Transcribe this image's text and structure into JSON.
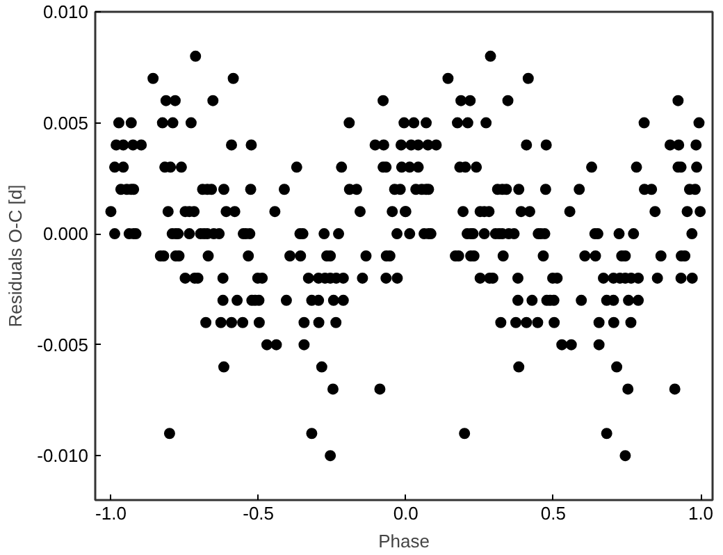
{
  "chart_data": {
    "type": "scatter",
    "xlabel": "Phase",
    "ylabel": "Residuals O-C [d]",
    "xlim": [
      -1.053,
      1.04
    ],
    "ylim": [
      -0.012,
      0.01
    ],
    "xticks": [
      {
        "value": -1.0,
        "label": "-1.0"
      },
      {
        "value": -0.5,
        "label": "-0.5"
      },
      {
        "value": 0.0,
        "label": "0.0"
      },
      {
        "value": 0.5,
        "label": "0.5"
      },
      {
        "value": 1.0,
        "label": "1.0"
      }
    ],
    "yticks": [
      {
        "value": -0.01,
        "label": "-0.010"
      },
      {
        "value": -0.005,
        "label": "-0.005"
      },
      {
        "value": 0.0,
        "label": "0.000"
      },
      {
        "value": 0.005,
        "label": "0.005"
      },
      {
        "value": 0.01,
        "label": "0.010"
      }
    ],
    "grid": false,
    "marker": "circle",
    "series": [
      {
        "color": "#000000",
        "x": [
          -0.713,
          -0.857,
          -0.585,
          -0.813,
          -0.782,
          -0.654,
          -0.077,
          -0.973,
          -0.931,
          -0.825,
          -0.79,
          -0.728,
          -0.192,
          -0.006,
          -0.982,
          -0.958,
          -0.925,
          -0.897,
          -0.591,
          -0.524,
          -0.104,
          -0.075,
          -0.016,
          -0.987,
          -0.958,
          -0.817,
          -0.798,
          -0.761,
          -0.37,
          -0.218,
          -0.077,
          -0.067,
          -0.014,
          -0.966,
          -0.946,
          -0.931,
          -0.923,
          -0.689,
          -0.673,
          -0.659,
          -0.617,
          -0.526,
          -0.412,
          -0.191,
          -0.167,
          -0.038,
          -0.019,
          -1.0,
          -0.806,
          -0.748,
          -0.734,
          -0.718,
          -0.609,
          -0.58,
          -0.444,
          -0.155,
          -0.046,
          -0.002,
          -0.987,
          -0.938,
          -0.923,
          -0.915,
          -0.792,
          -0.78,
          -0.772,
          -0.734,
          -0.696,
          -0.684,
          -0.673,
          -0.651,
          -0.633,
          -0.551,
          -0.542,
          -0.529,
          -0.359,
          -0.349,
          -0.277,
          -0.228,
          -0.03,
          -0.832,
          -0.821,
          -0.78,
          -0.769,
          -0.67,
          -0.534,
          -0.393,
          -0.357,
          -0.268,
          -0.256,
          -0.135,
          -0.066,
          -0.054,
          -0.748,
          -0.716,
          -0.705,
          -0.62,
          -0.502,
          -0.487,
          -0.33,
          -0.296,
          -0.274,
          -0.256,
          -0.236,
          -0.212,
          -0.147,
          -0.067,
          -0.029,
          -0.62,
          -0.572,
          -0.522,
          -0.511,
          -0.498,
          -0.405,
          -0.319,
          -0.296,
          -0.245,
          -0.212,
          -0.678,
          -0.627,
          -0.591,
          -0.553,
          -0.497,
          -0.345,
          -0.295,
          -0.237,
          -0.471,
          -0.439,
          -0.345,
          -0.617,
          -0.285,
          -0.247,
          -0.088,
          -0.801,
          -0.319,
          -0.256,
          0.287,
          0.143,
          0.415,
          0.187,
          0.218,
          0.346,
          0.923,
          0.027,
          0.069,
          0.175,
          0.21,
          0.272,
          0.808,
          0.994,
          0.018,
          0.042,
          0.075,
          0.103,
          0.409,
          0.476,
          0.896,
          0.925,
          0.984,
          0.013,
          0.042,
          0.183,
          0.202,
          0.239,
          0.63,
          0.782,
          0.923,
          0.933,
          0.986,
          0.034,
          0.054,
          0.069,
          0.077,
          0.311,
          0.327,
          0.341,
          0.383,
          0.474,
          0.588,
          0.809,
          0.833,
          0.962,
          0.981,
          0.0,
          0.194,
          0.252,
          0.266,
          0.282,
          0.391,
          0.42,
          0.556,
          0.845,
          0.954,
          0.998,
          0.013,
          0.062,
          0.077,
          0.085,
          0.208,
          0.22,
          0.228,
          0.266,
          0.304,
          0.316,
          0.327,
          0.349,
          0.367,
          0.449,
          0.458,
          0.471,
          0.641,
          0.651,
          0.723,
          0.772,
          0.97,
          0.168,
          0.179,
          0.22,
          0.231,
          0.33,
          0.466,
          0.607,
          0.643,
          0.732,
          0.744,
          0.865,
          0.934,
          0.946,
          0.252,
          0.284,
          0.295,
          0.38,
          0.498,
          0.513,
          0.67,
          0.704,
          0.726,
          0.744,
          0.764,
          0.788,
          0.853,
          0.933,
          0.971,
          0.38,
          0.428,
          0.478,
          0.489,
          0.502,
          0.595,
          0.681,
          0.704,
          0.755,
          0.788,
          0.322,
          0.373,
          0.409,
          0.447,
          0.503,
          0.655,
          0.705,
          0.763,
          0.529,
          0.561,
          0.655,
          0.383,
          0.715,
          0.753,
          0.912,
          0.199,
          0.681,
          0.744
        ],
        "values": [
          0.008,
          0.007,
          0.007,
          0.006,
          0.006,
          0.006,
          0.006,
          0.005,
          0.005,
          0.005,
          0.005,
          0.005,
          0.005,
          0.005,
          0.004,
          0.004,
          0.004,
          0.004,
          0.004,
          0.004,
          0.004,
          0.004,
          0.004,
          0.003,
          0.003,
          0.003,
          0.003,
          0.003,
          0.003,
          0.003,
          0.003,
          0.003,
          0.003,
          0.002,
          0.002,
          0.002,
          0.002,
          0.002,
          0.002,
          0.002,
          0.002,
          0.002,
          0.002,
          0.002,
          0.002,
          0.002,
          0.002,
          0.001,
          0.001,
          0.001,
          0.001,
          0.001,
          0.001,
          0.001,
          0.001,
          0.001,
          0.001,
          0.001,
          0.0,
          0.0,
          0.0,
          0.0,
          0.0,
          0.0,
          0.0,
          0.0,
          0.0,
          0.0,
          0.0,
          0.0,
          0.0,
          0.0,
          0.0,
          0.0,
          0.0,
          0.0,
          0.0,
          0.0,
          0.0,
          -0.001,
          -0.001,
          -0.001,
          -0.001,
          -0.001,
          -0.001,
          -0.001,
          -0.001,
          -0.001,
          -0.001,
          -0.001,
          -0.001,
          -0.001,
          -0.002,
          -0.002,
          -0.002,
          -0.002,
          -0.002,
          -0.002,
          -0.002,
          -0.002,
          -0.002,
          -0.002,
          -0.002,
          -0.002,
          -0.002,
          -0.002,
          -0.002,
          -0.003,
          -0.003,
          -0.003,
          -0.003,
          -0.003,
          -0.003,
          -0.003,
          -0.003,
          -0.003,
          -0.003,
          -0.004,
          -0.004,
          -0.004,
          -0.004,
          -0.004,
          -0.004,
          -0.004,
          -0.004,
          -0.005,
          -0.005,
          -0.005,
          -0.006,
          -0.006,
          -0.007,
          -0.007,
          -0.009,
          -0.009,
          -0.01,
          0.008,
          0.007,
          0.007,
          0.006,
          0.006,
          0.006,
          0.006,
          0.005,
          0.005,
          0.005,
          0.005,
          0.005,
          0.005,
          0.005,
          0.004,
          0.004,
          0.004,
          0.004,
          0.004,
          0.004,
          0.004,
          0.004,
          0.004,
          0.003,
          0.003,
          0.003,
          0.003,
          0.003,
          0.003,
          0.003,
          0.003,
          0.003,
          0.003,
          0.002,
          0.002,
          0.002,
          0.002,
          0.002,
          0.002,
          0.002,
          0.002,
          0.002,
          0.002,
          0.002,
          0.002,
          0.002,
          0.002,
          0.001,
          0.001,
          0.001,
          0.001,
          0.001,
          0.001,
          0.001,
          0.001,
          0.001,
          0.001,
          0.001,
          0.0,
          0.0,
          0.0,
          0.0,
          0.0,
          0.0,
          0.0,
          0.0,
          0.0,
          0.0,
          0.0,
          0.0,
          0.0,
          0.0,
          0.0,
          0.0,
          0.0,
          0.0,
          0.0,
          0.0,
          0.0,
          -0.001,
          -0.001,
          -0.001,
          -0.001,
          -0.001,
          -0.001,
          -0.001,
          -0.001,
          -0.001,
          -0.001,
          -0.001,
          -0.001,
          -0.001,
          -0.002,
          -0.002,
          -0.002,
          -0.002,
          -0.002,
          -0.002,
          -0.002,
          -0.002,
          -0.002,
          -0.002,
          -0.002,
          -0.002,
          -0.002,
          -0.002,
          -0.002,
          -0.003,
          -0.003,
          -0.003,
          -0.003,
          -0.003,
          -0.003,
          -0.003,
          -0.003,
          -0.003,
          -0.003,
          -0.004,
          -0.004,
          -0.004,
          -0.004,
          -0.004,
          -0.004,
          -0.004,
          -0.004,
          -0.005,
          -0.005,
          -0.005,
          -0.006,
          -0.006,
          -0.007,
          -0.007,
          -0.009,
          -0.009,
          -0.01
        ]
      }
    ]
  }
}
